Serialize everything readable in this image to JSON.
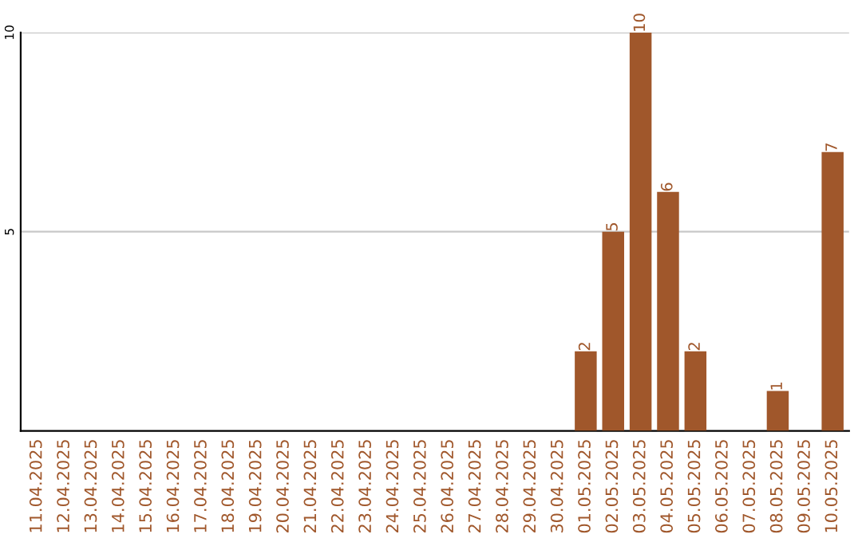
{
  "chart_data": {
    "type": "bar",
    "categories": [
      "11.04.2025",
      "12.04.2025",
      "13.04.2025",
      "14.04.2025",
      "15.04.2025",
      "16.04.2025",
      "17.04.2025",
      "18.04.2025",
      "19.04.2025",
      "20.04.2025",
      "21.04.2025",
      "22.04.2025",
      "23.04.2025",
      "24.04.2025",
      "25.04.2025",
      "26.04.2025",
      "27.04.2025",
      "28.04.2025",
      "29.04.2025",
      "30.04.2025",
      "01.05.2025",
      "02.05.2025",
      "03.05.2025",
      "04.05.2025",
      "05.05.2025",
      "06.05.2025",
      "07.05.2025",
      "08.05.2025",
      "09.05.2025",
      "10.05.2025"
    ],
    "values": [
      0,
      0,
      0,
      0,
      0,
      0,
      0,
      0,
      0,
      0,
      0,
      0,
      0,
      0,
      0,
      0,
      0,
      0,
      0,
      0,
      2,
      5,
      10,
      6,
      2,
      0,
      0,
      1,
      0,
      7
    ],
    "value_labels": [
      null,
      null,
      null,
      null,
      null,
      null,
      null,
      null,
      null,
      null,
      null,
      null,
      null,
      null,
      null,
      null,
      null,
      null,
      null,
      null,
      "2",
      "5",
      "10",
      "6",
      "2",
      null,
      null,
      "1",
      null,
      "7"
    ],
    "color": "#a0572b",
    "ylim": [
      0,
      10
    ],
    "yticks": [
      5,
      10
    ],
    "grid": "y"
  }
}
